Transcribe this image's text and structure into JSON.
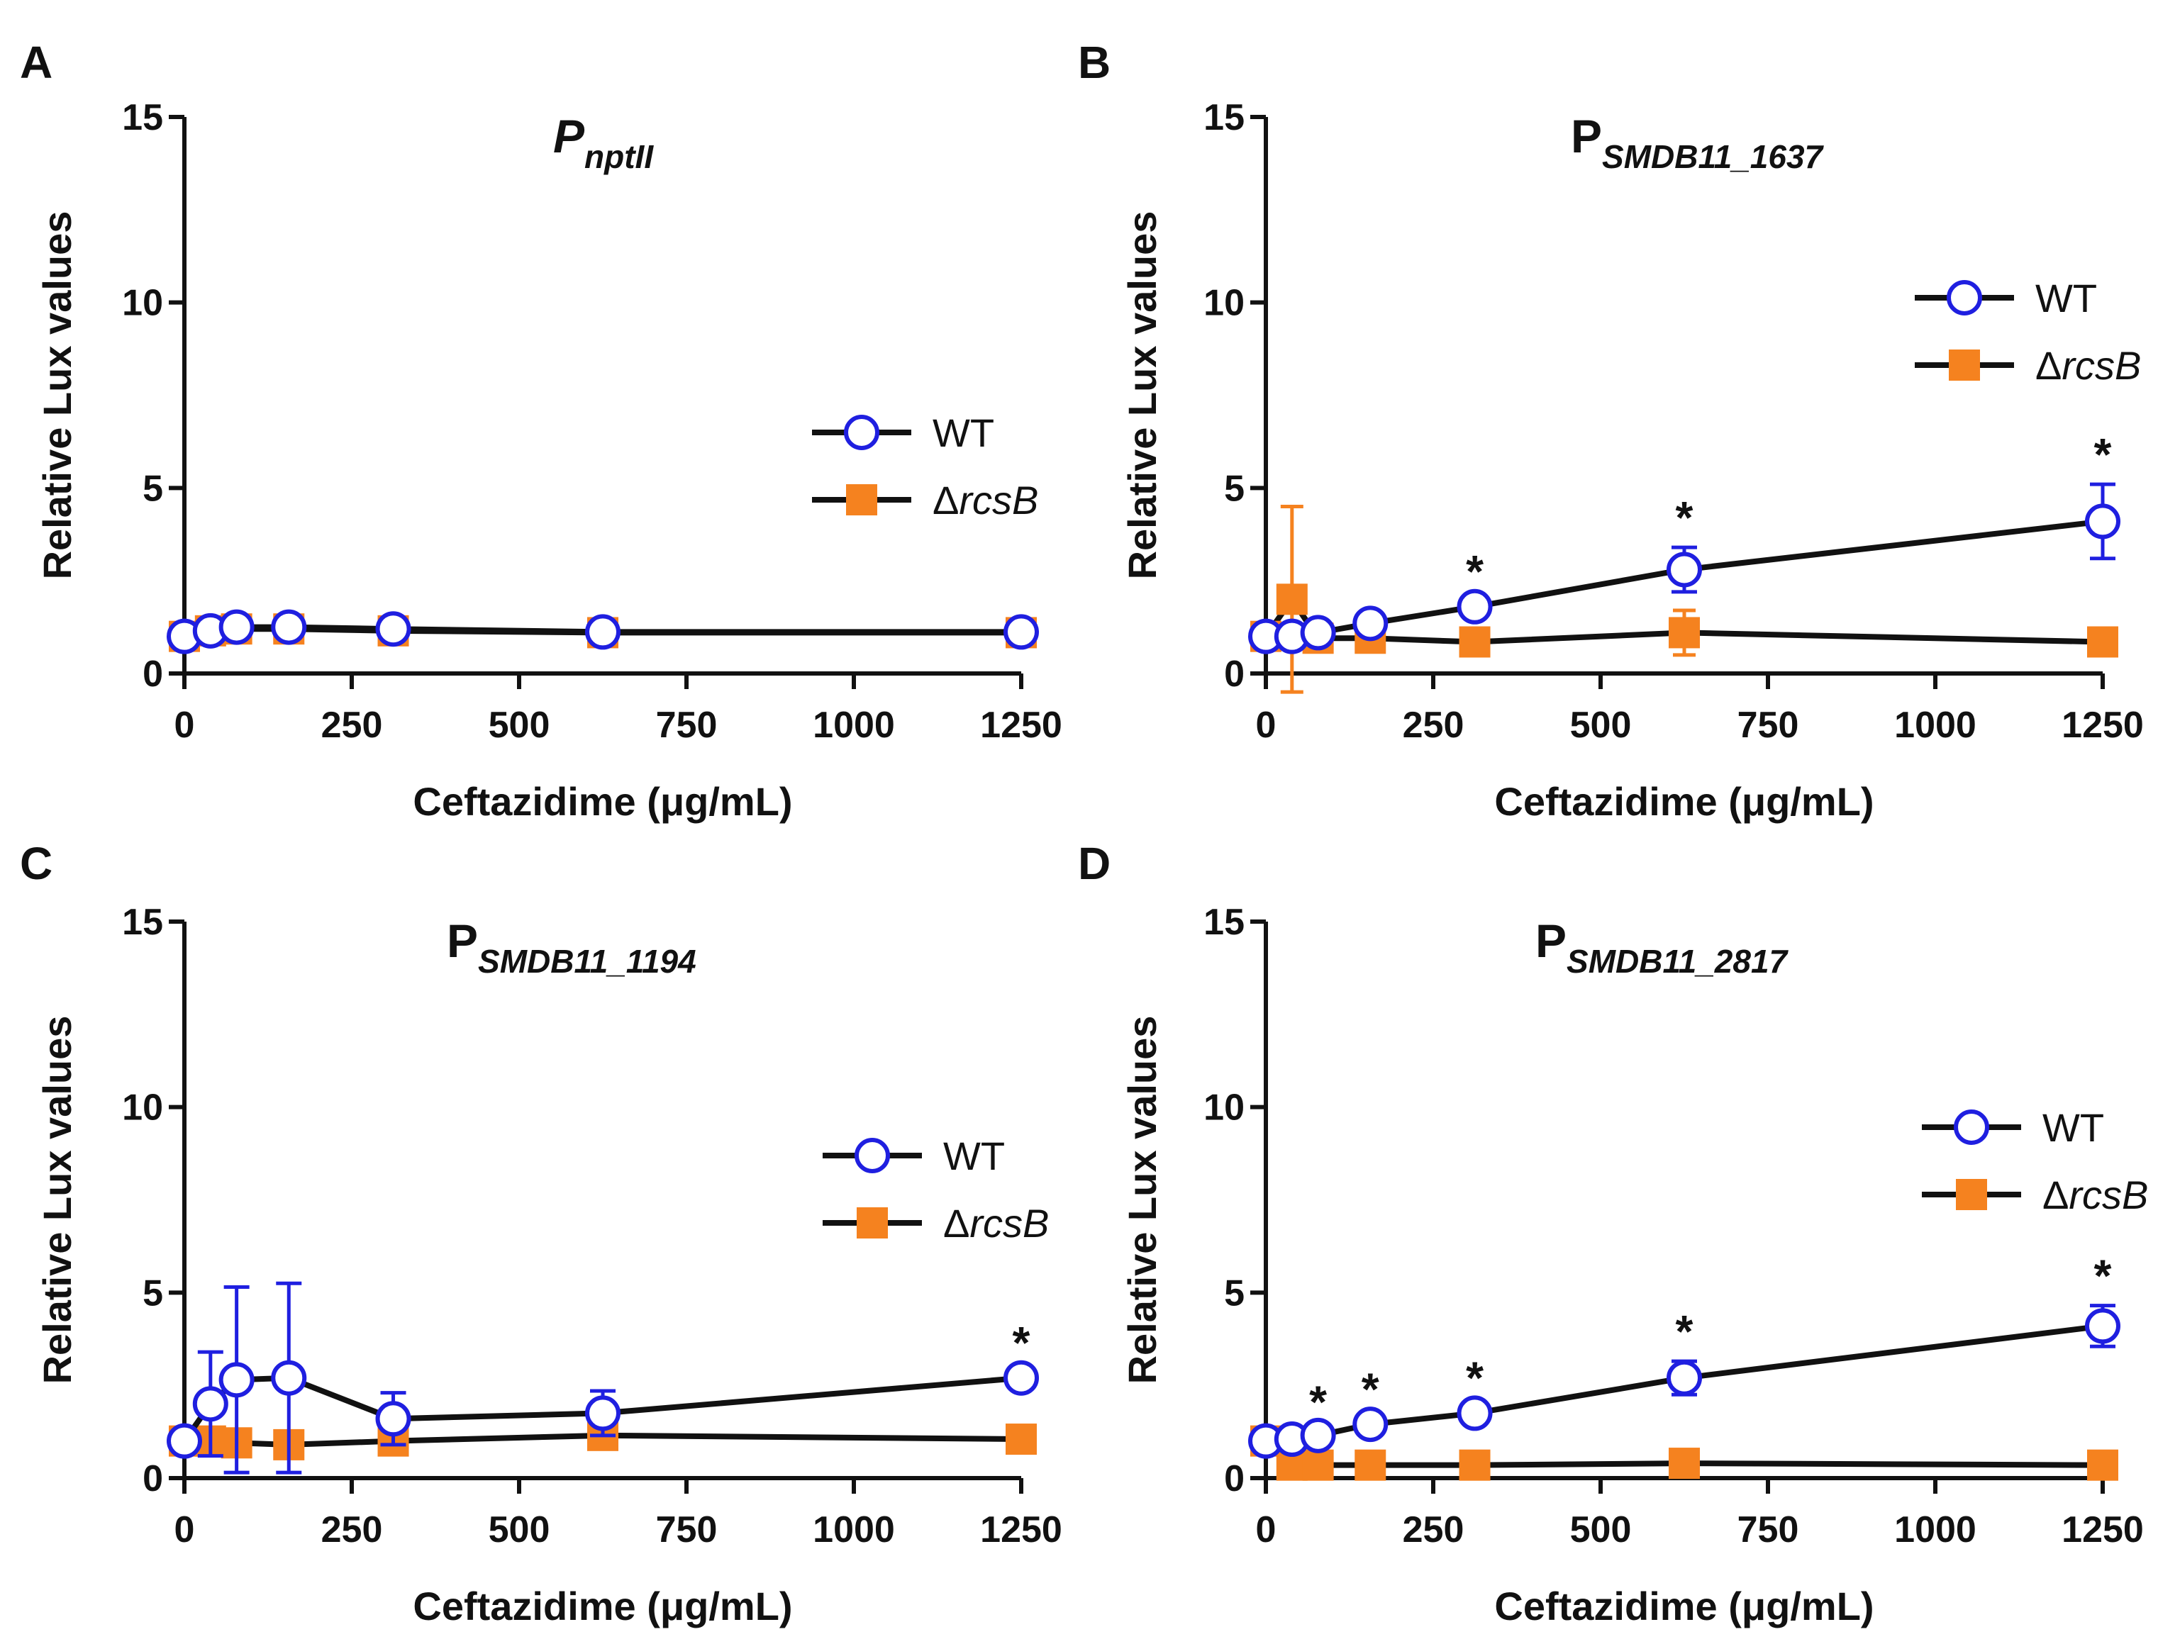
{
  "colors": {
    "wt": "#1f1fe0",
    "mut": "#f5821f",
    "line": "#111111"
  },
  "legend": {
    "wt": "WT",
    "mut_delta": "Δ",
    "mut": "rcsB"
  },
  "chart_data": [
    {
      "type": "line",
      "panel": "A",
      "title_main": "P",
      "title_sub": "nptII",
      "title_italic": true,
      "xlabel": "Ceftazidime (μg/mL)",
      "ylabel": "Relative Lux values",
      "xlim": [
        0,
        1250
      ],
      "ylim": [
        0,
        15
      ],
      "xticks": [
        "0",
        "250",
        "500",
        "750",
        "1000",
        "1250"
      ],
      "yticks": [
        "0",
        "5",
        "10",
        "15"
      ],
      "x": [
        0,
        39,
        78,
        156,
        312,
        625,
        1250
      ],
      "series": [
        {
          "name": "WT",
          "values": [
            1.0,
            1.15,
            1.25,
            1.25,
            1.2,
            1.12,
            1.12
          ],
          "err": [
            0.1,
            0.1,
            0.1,
            0.1,
            0.1,
            0.1,
            0.1
          ]
        },
        {
          "name": "ΔrcsB",
          "values": [
            1.0,
            1.15,
            1.2,
            1.2,
            1.15,
            1.1,
            1.1
          ],
          "err": [
            0.15,
            0.15,
            0.15,
            0.15,
            0.15,
            0.15,
            0.15
          ]
        }
      ],
      "stars": []
    },
    {
      "type": "line",
      "panel": "B",
      "title_main": "P",
      "title_sub": "SMDB11_1637",
      "title_italic": false,
      "xlabel": "Ceftazidime (μg/mL)",
      "ylabel": "Relative Lux values",
      "xlim": [
        0,
        1250
      ],
      "ylim": [
        0,
        15
      ],
      "xticks": [
        "0",
        "250",
        "500",
        "750",
        "1000",
        "1250"
      ],
      "yticks": [
        "0",
        "5",
        "10",
        "15"
      ],
      "x": [
        0,
        39,
        78,
        156,
        312,
        625,
        1250
      ],
      "series": [
        {
          "name": "WT",
          "values": [
            1.0,
            1.0,
            1.1,
            1.35,
            1.8,
            2.8,
            4.1
          ],
          "err": [
            0.1,
            0.1,
            0.1,
            0.1,
            0.15,
            0.6,
            1.0
          ]
        },
        {
          "name": "ΔrcsB",
          "values": [
            1.0,
            2.0,
            0.95,
            0.95,
            0.85,
            1.1,
            0.85
          ],
          "err": [
            0.1,
            2.5,
            0.2,
            0.1,
            0.1,
            0.6,
            0.1
          ]
        }
      ],
      "stars": [
        312,
        625,
        1250
      ]
    },
    {
      "type": "line",
      "panel": "C",
      "title_main": "P",
      "title_sub": "SMDB11_1194",
      "title_italic": false,
      "xlabel": "Ceftazidime (μg/mL)",
      "ylabel": "Relative Lux values",
      "xlim": [
        0,
        1250
      ],
      "ylim": [
        0,
        15
      ],
      "xticks": [
        "0",
        "250",
        "500",
        "750",
        "1000",
        "1250"
      ],
      "yticks": [
        "0",
        "5",
        "10",
        "15"
      ],
      "x": [
        0,
        39,
        78,
        156,
        312,
        625,
        1250
      ],
      "series": [
        {
          "name": "WT",
          "values": [
            1.0,
            2.0,
            2.65,
            2.7,
            1.6,
            1.75,
            2.7
          ],
          "err": [
            0.1,
            1.4,
            2.5,
            2.55,
            0.7,
            0.6,
            0.15
          ]
        },
        {
          "name": "ΔrcsB",
          "values": [
            1.0,
            1.0,
            0.95,
            0.9,
            1.0,
            1.15,
            1.05
          ],
          "err": [
            0.15,
            0.15,
            0.15,
            0.15,
            0.2,
            0.2,
            0.15
          ]
        }
      ],
      "stars": [
        1250
      ]
    },
    {
      "type": "line",
      "panel": "D",
      "title_main": "P",
      "title_sub": "SMDB11_2817",
      "title_italic": false,
      "xlabel": "Ceftazidime (μg/mL)",
      "ylabel": "Relative Lux values",
      "xlim": [
        0,
        1250
      ],
      "ylim": [
        0,
        15
      ],
      "xticks": [
        "0",
        "250",
        "500",
        "750",
        "1000",
        "1250"
      ],
      "yticks": [
        "0",
        "5",
        "10",
        "15"
      ],
      "x": [
        0,
        39,
        78,
        156,
        312,
        625,
        1250
      ],
      "series": [
        {
          "name": "WT",
          "values": [
            1.0,
            1.05,
            1.15,
            1.45,
            1.75,
            2.7,
            4.1
          ],
          "err": [
            0.1,
            0.1,
            0.1,
            0.15,
            0.15,
            0.45,
            0.55
          ]
        },
        {
          "name": "ΔrcsB",
          "values": [
            1.0,
            0.35,
            0.35,
            0.35,
            0.35,
            0.4,
            0.35
          ],
          "err": [
            0.05,
            0.05,
            0.05,
            0.05,
            0.05,
            0.05,
            0.05
          ]
        }
      ],
      "stars": [
        78,
        156,
        312,
        625,
        1250
      ]
    }
  ]
}
